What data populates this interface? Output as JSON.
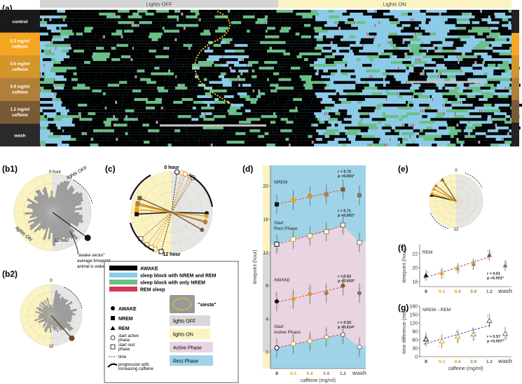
{
  "panel_labels": {
    "a": "(a)",
    "b1": "(b1)",
    "b2": "(b2)",
    "c": "(c)",
    "d": "(d)",
    "e": "(e)",
    "f": "(f)",
    "g": "(g)"
  },
  "panel_a": {
    "lights_off_label": "Lights OFF",
    "lights_on_label": "Lights ON",
    "rows": [
      {
        "line1": "control",
        "line2": "",
        "color": "#1a1a1a"
      },
      {
        "line1": "0.3 mg/ml",
        "line2": "caffeine",
        "color": "#f5a623"
      },
      {
        "line1": "0.6 mg/ml",
        "line2": "caffeine",
        "color": "#d4952b"
      },
      {
        "line1": "0.9 mg/ml",
        "line2": "caffeine",
        "color": "#b07f3a"
      },
      {
        "line1": "1.2 mg/ml",
        "line2": "caffeine",
        "color": "#7a5a35"
      },
      {
        "line1": "wash",
        "line2": "",
        "color": "#2a2a2a"
      }
    ],
    "colors": {
      "awake": "#000000",
      "sleep_nrem_rem": "#8ccbe8",
      "sleep_nrem": "#6abf85",
      "rem": "#d9365a"
    }
  },
  "panel_b1": {
    "zero_label": "0 hour",
    "noon_label": "12 hour",
    "lights_off_label": "lights OFF",
    "lights_on_label": "lights ON",
    "annotation_line1": "\"awake vector\"",
    "annotation_line2": "average timepoint",
    "annotation_line3": "animal is wake"
  },
  "panel_b2": {
    "zero_label": "0",
    "noon_label": "12"
  },
  "panel_c": {
    "zero_label": "0 hour",
    "noon_label": "12 hour"
  },
  "panel_e": {
    "zero_label": "0",
    "noon_label": "12"
  },
  "legend": {
    "awake": "AWAKE",
    "sleep_nrem_rem": "sleep block with NREM and REM",
    "sleep_nrem": "sleep block with only NREM",
    "rem": "REM sleep",
    "siesta": "\"siesta\"",
    "sym_awake": "AWAKE",
    "sym_nrem": "NREM",
    "sym_rem": "REM",
    "start_active_1": "start active",
    "start_active_2": "phase",
    "start_rest_1": "start rest",
    "start_rest_2": "phase",
    "time": "time",
    "progression_1": "progression with",
    "progression_2": "increasing caffeine",
    "lights_off": "lights OFF",
    "lights_on": "lights ON",
    "active_phase": "Active Phase",
    "rest_phase": "Rest Phase"
  },
  "chart_data": [
    {
      "type": "scatter",
      "panel": "d",
      "ylabel": "timepoint (hour)",
      "xlabel": "caffeine (mg/ml)",
      "categories": [
        "0",
        "0.3",
        "0.6",
        "0.9",
        "1.2",
        "wash"
      ],
      "category_colors": [
        "#111111",
        "#e8a317",
        "#d4952b",
        "#b07f3a",
        "#7a5a35",
        "#666666"
      ],
      "yticks": [
        0,
        4,
        8,
        12,
        16,
        20
      ],
      "ylim": [
        -2,
        22.5
      ],
      "series": [
        {
          "name": "NREM",
          "values": [
            17.8,
            18.3,
            18.8,
            19.0,
            19.6,
            18.9
          ],
          "stat_r": "r = 0.72",
          "stat_p": "p <0.001*"
        },
        {
          "name": "Start Rest Phase",
          "values": [
            13.0,
            13.6,
            14.0,
            14.5,
            15.3,
            13.2
          ],
          "stat_r": "r = 0.71",
          "stat_p": "p <0.001*"
        },
        {
          "name": "AWAKE",
          "values": [
            6.1,
            6.4,
            7.0,
            7.1,
            8.0,
            7.1
          ],
          "stat_r": "r = 0.62",
          "stat_p": "p <0.003*"
        },
        {
          "name": "Start Active Phase",
          "values": [
            0.5,
            1.0,
            1.3,
            1.8,
            2.1,
            0.6
          ],
          "stat_r": "r = 0.53",
          "stat_p": "p <0.014*"
        }
      ],
      "series_labels": [
        {
          "line1": "NREM",
          "line2": ""
        },
        {
          "line1": "Start",
          "line2": "Rest Phase"
        },
        {
          "line1": "AWAKE",
          "line2": ""
        },
        {
          "line1": "Start",
          "line2": "Active Phase"
        }
      ]
    },
    {
      "type": "scatter",
      "panel": "f",
      "annotation": "REM",
      "ylabel": "timepoint (hour)",
      "xlabel": "",
      "categories": [
        "0",
        "0.3",
        "0.6",
        "0.9",
        "1.2",
        "wash"
      ],
      "yticks": [
        18,
        20,
        22
      ],
      "ylim": [
        17.3,
        23.3
      ],
      "values": [
        18.9,
        19.2,
        19.9,
        20.5,
        21.8,
        20.3
      ],
      "stat_r": "r = 0.61",
      "stat_p": "p <0.001*"
    },
    {
      "type": "scatter",
      "panel": "g",
      "annotation": "NREM→REM",
      "ylabel": "time difference (min)",
      "xlabel": "caffeine (mg/ml)",
      "categories": [
        "0",
        "0.3",
        "0.6",
        "0.9",
        "1.2",
        "wash"
      ],
      "yticks": [
        0,
        30,
        60,
        90,
        120,
        150,
        180
      ],
      "ylim": [
        0,
        180
      ],
      "values": [
        62,
        55,
        72,
        80,
        128,
        82
      ],
      "stat_r": "r = 0.57",
      "stat_p": "p <0.007*"
    }
  ]
}
